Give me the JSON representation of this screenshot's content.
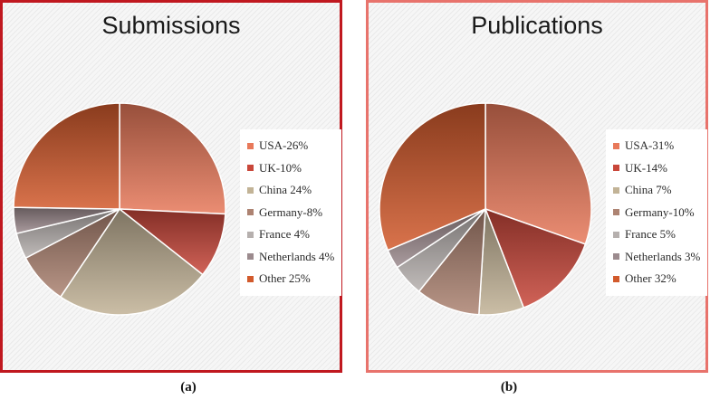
{
  "chart_data": [
    {
      "type": "pie",
      "title": "Submissions",
      "caption": "(a)",
      "legend_position": "right",
      "slices": [
        {
          "label": "USA-26%",
          "value": 26,
          "color": "#e8795a"
        },
        {
          "label": "UK-10%",
          "value": 10,
          "color": "#c9473a"
        },
        {
          "label": "China 24%",
          "value": 24,
          "color": "#c2b396"
        },
        {
          "label": "Germany-8%",
          "value": 8,
          "color": "#ad8372"
        },
        {
          "label": "France 4%",
          "value": 4,
          "color": "#b6b0ae"
        },
        {
          "label": "Netherlands 4%",
          "value": 4,
          "color": "#9c8b8e"
        },
        {
          "label": "Other 25%",
          "value": 25,
          "color": "#d25a2c"
        }
      ]
    },
    {
      "type": "pie",
      "title": "Publications",
      "caption": "(b)",
      "legend_position": "right",
      "slices": [
        {
          "label": "USA-31%",
          "value": 31,
          "color": "#e8795a"
        },
        {
          "label": "UK-14%",
          "value": 14,
          "color": "#c9473a"
        },
        {
          "label": "China 7%",
          "value": 7,
          "color": "#c2b396"
        },
        {
          "label": "Germany-10%",
          "value": 10,
          "color": "#ad8372"
        },
        {
          "label": "France 5%",
          "value": 5,
          "color": "#b6b0ae"
        },
        {
          "label": "Netherlands 3%",
          "value": 3,
          "color": "#9c8b8e"
        },
        {
          "label": "Other 32%",
          "value": 32,
          "color": "#d25a2c"
        }
      ]
    }
  ]
}
